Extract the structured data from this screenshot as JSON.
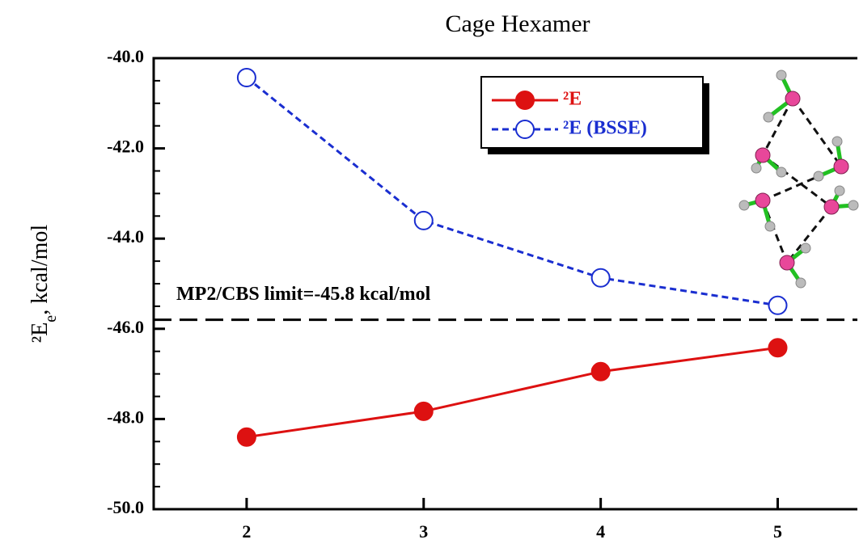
{
  "chart_data": {
    "type": "line",
    "title": "Cage Hexamer",
    "y_label": {
      "main": "²E",
      "sub": "e",
      "rest": ", kcal/mol"
    },
    "x": [
      2,
      3,
      4,
      5
    ],
    "series": [
      {
        "name": "²E",
        "color": "#dd1111",
        "marker": "filled-circle",
        "dash": false,
        "values": [
          -48.4,
          -47.83,
          -46.95,
          -46.42
        ]
      },
      {
        "name": "²E (BSSE)",
        "color": "#1a2ed0",
        "marker": "open-circle",
        "dash": true,
        "values": [
          -40.43,
          -43.6,
          -44.87,
          -45.48
        ]
      }
    ],
    "reference_line": {
      "value": -45.8,
      "label": "MP2/CBS limit=-45.8 kcal/mol"
    },
    "xlim": [
      1.475,
      5.45
    ],
    "ylim": [
      -50,
      -40
    ],
    "xticks": [
      2,
      3,
      4,
      5
    ],
    "yticks": [
      {
        "value": -40,
        "label": "-40.0"
      },
      {
        "value": -42,
        "label": "-42.0"
      },
      {
        "value": -44,
        "label": "-44.0"
      },
      {
        "value": -46,
        "label": "-46.0"
      },
      {
        "value": -48,
        "label": "-48.0"
      },
      {
        "value": -50,
        "label": "-50.0"
      }
    ],
    "yminorticks": [
      -40.5,
      -41,
      -41.5,
      -42.5,
      -43,
      -43.5,
      -44.5,
      -45,
      -45.5,
      -46.5,
      -47,
      -47.5,
      -48.5,
      -49,
      -49.5
    ]
  }
}
